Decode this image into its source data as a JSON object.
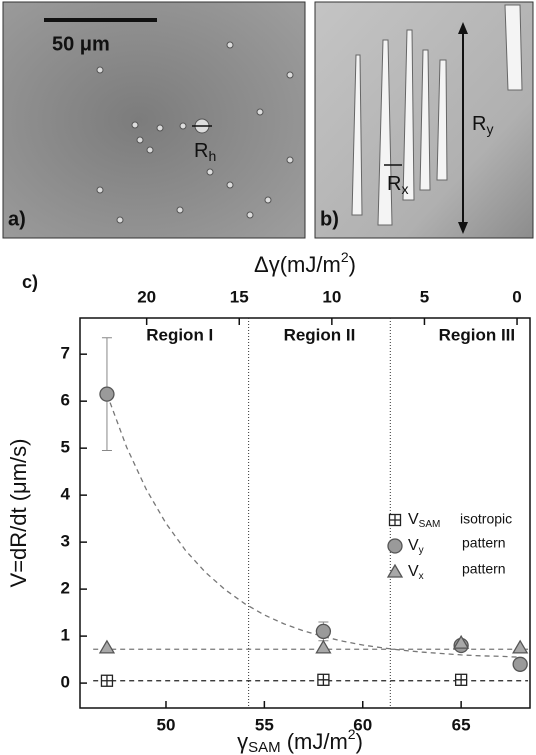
{
  "panels": {
    "a": {
      "label": "a)",
      "scale_bar": "50 μm",
      "annotation": {
        "main": "R",
        "sub": "h"
      }
    },
    "b": {
      "label": "b)",
      "annotation_x": {
        "main": "R",
        "sub": "x"
      },
      "annotation_y": {
        "main": "R",
        "sub": "y"
      }
    }
  },
  "chart_data": {
    "type": "scatter",
    "panel_label": "c)",
    "x_label": {
      "symbol": "γ",
      "sub": "SAM",
      "unit": " (mJ/m",
      "sup": "2",
      "close": ")"
    },
    "x2_label": {
      "symbol": "Δγ(mJ/m",
      "sup": "2",
      "close": ")"
    },
    "y_label": "V=dR/dt (μm/s)",
    "xlim": [
      45.63,
      68.5
    ],
    "xticks": [
      50,
      55,
      60,
      65
    ],
    "x2lim": [
      23.6,
      -0.7
    ],
    "x2ticks": [
      20,
      15,
      10,
      5,
      0
    ],
    "ylim": [
      -0.53,
      7.77
    ],
    "yticks": [
      0,
      1,
      2,
      3,
      4,
      5,
      6,
      7
    ],
    "region_bounds": [
      54.2,
      61.4
    ],
    "regions": [
      {
        "label": "Region I",
        "x": 50.7
      },
      {
        "label": "Region II",
        "x": 57.8
      },
      {
        "label": "Region III",
        "x": 65.8
      }
    ],
    "series": [
      {
        "name": "V",
        "sub": "SAM",
        "desc": "isotropic",
        "marker": "square-cross",
        "color": "#ffffff",
        "x": [
          47,
          58,
          65
        ],
        "values": [
          0.05,
          0.07,
          0.07
        ]
      },
      {
        "name": "V",
        "sub": "y",
        "desc": "pattern",
        "marker": "circle",
        "color": "#9a9a9a",
        "x": [
          47,
          58,
          65,
          68
        ],
        "values": [
          6.15,
          1.1,
          0.8,
          0.4
        ],
        "errors": [
          1.2,
          0.2,
          0.1,
          0.05
        ]
      },
      {
        "name": "V",
        "sub": "x",
        "desc": "pattern",
        "marker": "triangle",
        "color": "#a8a8a8",
        "x": [
          47,
          58,
          65,
          68
        ],
        "values": [
          0.75,
          0.75,
          0.85,
          0.75
        ]
      }
    ],
    "fits": [
      {
        "color": "#777777",
        "x": [
          47,
          48,
          49,
          50,
          51,
          52,
          53,
          54,
          55,
          56,
          57,
          58,
          59,
          60,
          61,
          62,
          63,
          64,
          65,
          66,
          67,
          68
        ],
        "values": [
          6.15,
          5.02,
          4.12,
          3.4,
          2.82,
          2.36,
          1.99,
          1.69,
          1.45,
          1.26,
          1.11,
          0.99,
          0.89,
          0.81,
          0.75,
          0.7,
          0.66,
          0.63,
          0.6,
          0.58,
          0.57,
          0.55
        ]
      },
      {
        "color": "#777777",
        "x": [
          46.3,
          68.4
        ],
        "values": [
          0.72,
          0.72
        ]
      },
      {
        "color": "#222222",
        "x": [
          46.3,
          68.4
        ],
        "values": [
          0.05,
          0.05
        ]
      }
    ]
  }
}
